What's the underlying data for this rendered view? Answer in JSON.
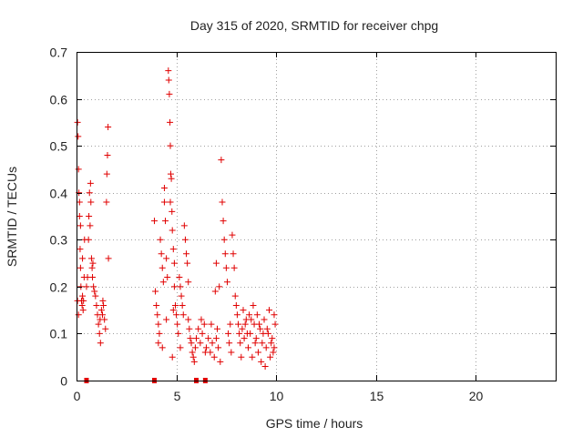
{
  "chart_data": {
    "type": "scatter",
    "title": "Day 315 of 2020, SRMTID for receiver chpg",
    "xlabel": "GPS time / hours",
    "ylabel": "SRMTID / TECUs",
    "xlim": [
      0,
      24
    ],
    "ylim": [
      0,
      0.7
    ],
    "xticks": [
      0,
      5,
      10,
      15,
      20
    ],
    "yticks": [
      0,
      0.1,
      0.2,
      0.3,
      0.4,
      0.5,
      0.6,
      0.7
    ],
    "xtick_labels": [
      "0",
      "5",
      "10",
      "15",
      "20"
    ],
    "ytick_labels": [
      "0",
      "0.1",
      "0.2",
      "0.3",
      "0.4",
      "0.5",
      "0.6",
      "0.7"
    ],
    "grid": true,
    "marker": "+",
    "series": [
      {
        "name": "SRMTID",
        "color": "#e00000",
        "points": [
          [
            0.05,
            0.55
          ],
          [
            0.08,
            0.52
          ],
          [
            0.1,
            0.45
          ],
          [
            0.12,
            0.4
          ],
          [
            0.15,
            0.35
          ],
          [
            0.18,
            0.28
          ],
          [
            0.2,
            0.24
          ],
          [
            0.22,
            0.2
          ],
          [
            0.25,
            0.17
          ],
          [
            0.28,
            0.16
          ],
          [
            0.3,
            0.18
          ],
          [
            0.33,
            0.15
          ],
          [
            0.35,
            0.17
          ],
          [
            0.38,
            0.22
          ],
          [
            0.4,
            0.3
          ],
          [
            0.05,
            0.17
          ],
          [
            0.1,
            0.14
          ],
          [
            0.15,
            0.38
          ],
          [
            0.2,
            0.33
          ],
          [
            0.3,
            0.26
          ],
          [
            0.5,
            0.2
          ],
          [
            0.55,
            0.22
          ],
          [
            0.6,
            0.3
          ],
          [
            0.62,
            0.35
          ],
          [
            0.65,
            0.4
          ],
          [
            0.7,
            0.42
          ],
          [
            0.72,
            0.38
          ],
          [
            0.75,
            0.26
          ],
          [
            0.78,
            0.24
          ],
          [
            0.8,
            0.22
          ],
          [
            0.85,
            0.2
          ],
          [
            0.9,
            0.19
          ],
          [
            0.95,
            0.18
          ],
          [
            1.0,
            0.16
          ],
          [
            1.05,
            0.14
          ],
          [
            1.1,
            0.12
          ],
          [
            1.15,
            0.1
          ],
          [
            1.2,
            0.08
          ],
          [
            1.25,
            0.15
          ],
          [
            1.3,
            0.14
          ],
          [
            1.35,
            0.16
          ],
          [
            1.4,
            0.13
          ],
          [
            1.45,
            0.11
          ],
          [
            1.5,
            0.38
          ],
          [
            1.52,
            0.44
          ],
          [
            1.55,
            0.48
          ],
          [
            1.58,
            0.54
          ],
          [
            1.6,
            0.26
          ],
          [
            0.68,
            0.33
          ],
          [
            0.82,
            0.25
          ],
          [
            1.18,
            0.13
          ],
          [
            1.32,
            0.17
          ],
          [
            3.9,
            0.34
          ],
          [
            3.95,
            0.19
          ],
          [
            4.0,
            0.16
          ],
          [
            4.05,
            0.14
          ],
          [
            4.1,
            0.12
          ],
          [
            4.15,
            0.1
          ],
          [
            4.2,
            0.3
          ],
          [
            4.25,
            0.27
          ],
          [
            4.3,
            0.24
          ],
          [
            4.35,
            0.21
          ],
          [
            4.4,
            0.38
          ],
          [
            4.45,
            0.34
          ],
          [
            4.5,
            0.26
          ],
          [
            4.55,
            0.22
          ],
          [
            4.6,
            0.66
          ],
          [
            4.62,
            0.64
          ],
          [
            4.65,
            0.61
          ],
          [
            4.68,
            0.55
          ],
          [
            4.7,
            0.5
          ],
          [
            4.72,
            0.44
          ],
          [
            4.75,
            0.43
          ],
          [
            4.78,
            0.36
          ],
          [
            4.8,
            0.32
          ],
          [
            4.85,
            0.28
          ],
          [
            4.9,
            0.25
          ],
          [
            4.95,
            0.16
          ],
          [
            5.0,
            0.14
          ],
          [
            5.05,
            0.12
          ],
          [
            5.1,
            0.1
          ],
          [
            5.15,
            0.22
          ],
          [
            5.2,
            0.2
          ],
          [
            5.25,
            0.18
          ],
          [
            5.3,
            0.16
          ],
          [
            5.35,
            0.14
          ],
          [
            5.4,
            0.33
          ],
          [
            5.45,
            0.3
          ],
          [
            5.5,
            0.27
          ],
          [
            5.55,
            0.25
          ],
          [
            5.6,
            0.13
          ],
          [
            5.65,
            0.11
          ],
          [
            5.7,
            0.09
          ],
          [
            5.75,
            0.08
          ],
          [
            5.8,
            0.06
          ],
          [
            5.85,
            0.05
          ],
          [
            5.9,
            0.04
          ],
          [
            5.95,
            0.07
          ],
          [
            4.8,
            0.05
          ],
          [
            4.3,
            0.07
          ],
          [
            4.1,
            0.08
          ],
          [
            4.5,
            0.13
          ],
          [
            4.9,
            0.2
          ],
          [
            5.2,
            0.07
          ],
          [
            5.6,
            0.21
          ],
          [
            4.4,
            0.41
          ],
          [
            4.7,
            0.38
          ],
          [
            4.85,
            0.15
          ],
          [
            6.0,
            0.09
          ],
          [
            6.1,
            0.11
          ],
          [
            6.2,
            0.08
          ],
          [
            6.3,
            0.1
          ],
          [
            6.4,
            0.12
          ],
          [
            6.5,
            0.07
          ],
          [
            6.6,
            0.09
          ],
          [
            6.7,
            0.06
          ],
          [
            6.8,
            0.08
          ],
          [
            6.9,
            0.05
          ],
          [
            7.0,
            0.09
          ],
          [
            7.1,
            0.07
          ],
          [
            7.2,
            0.04
          ],
          [
            7.25,
            0.47
          ],
          [
            7.3,
            0.38
          ],
          [
            7.35,
            0.34
          ],
          [
            7.4,
            0.3
          ],
          [
            7.45,
            0.27
          ],
          [
            7.5,
            0.24
          ],
          [
            7.55,
            0.21
          ],
          [
            6.25,
            0.13
          ],
          [
            6.45,
            0.06
          ],
          [
            6.75,
            0.12
          ],
          [
            7.05,
            0.11
          ],
          [
            7.15,
            0.2
          ],
          [
            7.0,
            0.25
          ],
          [
            6.95,
            0.19
          ],
          [
            7.6,
            0.1
          ],
          [
            7.65,
            0.08
          ],
          [
            7.7,
            0.12
          ],
          [
            7.75,
            0.06
          ],
          [
            7.8,
            0.31
          ],
          [
            7.85,
            0.27
          ],
          [
            7.9,
            0.24
          ],
          [
            7.95,
            0.18
          ],
          [
            8.0,
            0.16
          ],
          [
            8.05,
            0.14
          ],
          [
            8.1,
            0.12
          ],
          [
            8.15,
            0.1
          ],
          [
            8.2,
            0.08
          ],
          [
            8.3,
            0.11
          ],
          [
            8.4,
            0.09
          ],
          [
            8.5,
            0.13
          ],
          [
            8.6,
            0.07
          ],
          [
            8.7,
            0.1
          ],
          [
            8.8,
            0.05
          ],
          [
            8.9,
            0.12
          ],
          [
            9.0,
            0.09
          ],
          [
            9.1,
            0.06
          ],
          [
            9.2,
            0.11
          ],
          [
            9.3,
            0.08
          ],
          [
            9.4,
            0.13
          ],
          [
            9.5,
            0.07
          ],
          [
            9.6,
            0.1
          ],
          [
            9.7,
            0.05
          ],
          [
            9.8,
            0.09
          ],
          [
            9.9,
            0.14
          ],
          [
            9.95,
            0.12
          ],
          [
            8.25,
            0.05
          ],
          [
            8.45,
            0.12
          ],
          [
            8.65,
            0.14
          ],
          [
            8.85,
            0.16
          ],
          [
            9.05,
            0.14
          ],
          [
            9.25,
            0.04
          ],
          [
            9.45,
            0.03
          ],
          [
            9.65,
            0.15
          ],
          [
            9.85,
            0.06
          ],
          [
            8.35,
            0.15
          ],
          [
            8.55,
            0.1
          ],
          [
            8.75,
            0.13
          ],
          [
            8.95,
            0.08
          ],
          [
            9.15,
            0.12
          ],
          [
            9.35,
            0.1
          ],
          [
            9.55,
            0.11
          ],
          [
            9.75,
            0.08
          ],
          [
            9.9,
            0.07
          ]
        ],
        "zero_markers": [
          0.5,
          3.9,
          6.0,
          6.45
        ]
      }
    ]
  }
}
